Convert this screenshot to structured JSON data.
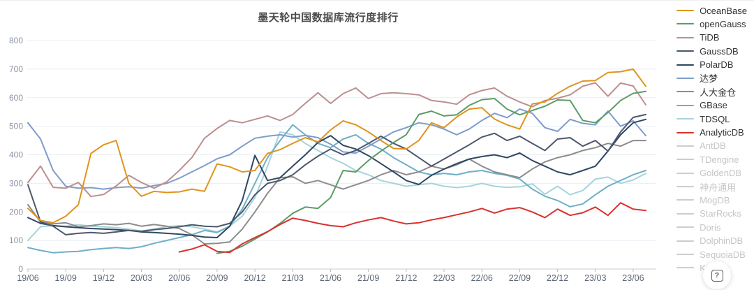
{
  "title": "墨天轮中国数据库流行度排行",
  "help_button": {
    "icon": "question-mark-in-rounded-box"
  },
  "chart_data": {
    "type": "line",
    "x": [
      "19/06",
      "19/07",
      "19/08",
      "19/09",
      "19/10",
      "19/11",
      "19/12",
      "20/01",
      "20/02",
      "20/03",
      "20/04",
      "20/05",
      "20/06",
      "20/07",
      "20/08",
      "20/09",
      "20/10",
      "20/11",
      "20/12",
      "21/01",
      "21/02",
      "21/03",
      "21/04",
      "21/05",
      "21/06",
      "21/07",
      "21/08",
      "21/09",
      "21/10",
      "21/11",
      "21/12",
      "22/01",
      "22/02",
      "22/03",
      "22/04",
      "22/05",
      "22/06",
      "22/07",
      "22/08",
      "22/09",
      "22/10",
      "22/11",
      "22/12",
      "23/01",
      "23/02",
      "23/03",
      "23/04",
      "23/05",
      "23/06",
      "23/07"
    ],
    "x_tick_labels": [
      "19/06",
      "19/09",
      "19/12",
      "20/03",
      "20/06",
      "20/09",
      "20/12",
      "21/03",
      "21/06",
      "21/09",
      "21/12",
      "22/03",
      "22/06",
      "22/09",
      "22/12",
      "23/03",
      "23/06"
    ],
    "x_label_every": 3,
    "ylim": [
      0,
      800
    ],
    "yticks": [
      0,
      100,
      200,
      300,
      400,
      500,
      600,
      700,
      800
    ],
    "grid": true,
    "legend_position": "right",
    "grid_color": "#e7edf4",
    "axis_line_color": "#c9cfd6",
    "y_label_color": "#8a93a3",
    "x_label_color": "#5d6775",
    "series": [
      {
        "name": "OceanBase",
        "color": "#e0941e",
        "active": true,
        "values": [
          212,
          170,
          162,
          185,
          225,
          405,
          435,
          450,
          300,
          255,
          272,
          268,
          270,
          280,
          272,
          368,
          358,
          340,
          345,
          405,
          418,
          440,
          460,
          445,
          487,
          519,
          505,
          480,
          450,
          422,
          420,
          450,
          512,
          495,
          532,
          560,
          565,
          525,
          505,
          490,
          578,
          585,
          615,
          640,
          658,
          660,
          688,
          691,
          700,
          640
        ]
      },
      {
        "name": "openGauss",
        "color": "#5c9c68",
        "active": true,
        "values": [
          null,
          null,
          null,
          null,
          null,
          null,
          null,
          null,
          null,
          null,
          null,
          null,
          null,
          null,
          null,
          55,
          62,
          80,
          105,
          130,
          160,
          195,
          217,
          212,
          250,
          345,
          340,
          380,
          413,
          443,
          470,
          541,
          553,
          536,
          540,
          573,
          593,
          597,
          560,
          540,
          555,
          570,
          592,
          590,
          520,
          512,
          548,
          590,
          615,
          622
        ]
      },
      {
        "name": "TiDB",
        "color": "#bc8f8f",
        "active": true,
        "values": [
          303,
          360,
          286,
          283,
          303,
          254,
          261,
          291,
          328,
          303,
          283,
          305,
          345,
          390,
          458,
          492,
          520,
          512,
          524,
          536,
          520,
          541,
          580,
          617,
          580,
          614,
          634,
          597,
          614,
          617,
          614,
          610,
          590,
          585,
          577,
          610,
          625,
          634,
          605,
          585,
          568,
          590,
          598,
          610,
          640,
          652,
          605,
          651,
          641,
          575
        ]
      },
      {
        "name": "GaussDB",
        "color": "#4c586b",
        "active": true,
        "values": [
          295,
          165,
          150,
          120,
          125,
          128,
          125,
          130,
          135,
          132,
          138,
          142,
          148,
          155,
          150,
          148,
          160,
          200,
          260,
          300,
          310,
          330,
          365,
          395,
          420,
          400,
          415,
          440,
          465,
          440,
          420,
          390,
          360,
          385,
          410,
          435,
          462,
          475,
          450,
          465,
          440,
          415,
          455,
          460,
          430,
          450,
          413,
          480,
          531,
          541
        ]
      },
      {
        "name": "PolarDB",
        "color": "#2f4763",
        "active": true,
        "values": [
          180,
          160,
          152,
          148,
          145,
          142,
          140,
          138,
          135,
          130,
          128,
          125,
          122,
          118,
          112,
          110,
          150,
          240,
          398,
          310,
          320,
          360,
          400,
          443,
          467,
          433,
          420,
          397,
          369,
          340,
          310,
          296,
          328,
          350,
          369,
          385,
          394,
          400,
          390,
          406,
          380,
          360,
          340,
          330,
          345,
          360,
          413,
          470,
          512,
          524
        ]
      },
      {
        "name": "达梦",
        "color": "#7e9ccb",
        "active": true,
        "values": [
          512,
          455,
          345,
          290,
          283,
          285,
          280,
          285,
          288,
          283,
          292,
          300,
          318,
          340,
          362,
          386,
          400,
          430,
          458,
          465,
          470,
          462,
          468,
          460,
          437,
          410,
          406,
          430,
          455,
          480,
          495,
          512,
          505,
          490,
          470,
          490,
          520,
          545,
          530,
          560,
          545,
          495,
          482,
          524,
          510,
          505,
          553,
          500,
          519,
          467
        ]
      },
      {
        "name": "人大金仓",
        "color": "#8c8c8c",
        "active": true,
        "values": [
          225,
          165,
          158,
          162,
          148,
          152,
          158,
          155,
          160,
          150,
          156,
          150,
          142,
          120,
          88,
          90,
          95,
          140,
          200,
          265,
          320,
          323,
          300,
          310,
          295,
          280,
          295,
          310,
          330,
          345,
          330,
          340,
          360,
          350,
          365,
          385,
          360,
          340,
          330,
          320,
          350,
          375,
          390,
          400,
          415,
          425,
          440,
          430,
          450,
          450
        ]
      },
      {
        "name": "GBase",
        "color": "#6fafc7",
        "active": true,
        "values": [
          75,
          65,
          57,
          60,
          62,
          68,
          72,
          75,
          72,
          78,
          90,
          100,
          110,
          120,
          135,
          128,
          150,
          210,
          300,
          390,
          450,
          505,
          470,
          440,
          425,
          455,
          470,
          440,
          420,
          390,
          365,
          340,
          330,
          335,
          330,
          340,
          345,
          335,
          328,
          315,
          280,
          255,
          240,
          218,
          228,
          260,
          290,
          310,
          330,
          345
        ]
      },
      {
        "name": "TDSQL",
        "color": "#a6d4dc",
        "active": true,
        "values": [
          100,
          148,
          152,
          150,
          155,
          150,
          148,
          145,
          140,
          133,
          140,
          148,
          152,
          148,
          140,
          130,
          150,
          185,
          250,
          360,
          480,
          470,
          440,
          415,
          390,
          370,
          345,
          330,
          310,
          300,
          290,
          295,
          300,
          290,
          285,
          290,
          300,
          290,
          286,
          288,
          298,
          262,
          290,
          260,
          275,
          315,
          322,
          300,
          312,
          335
        ]
      },
      {
        "name": "AnalyticDB",
        "color": "#d9322e",
        "active": true,
        "values": [
          null,
          null,
          null,
          null,
          null,
          null,
          null,
          null,
          null,
          null,
          null,
          null,
          60,
          70,
          85,
          62,
          58,
          88,
          110,
          131,
          156,
          178,
          170,
          160,
          152,
          148,
          162,
          172,
          180,
          168,
          158,
          162,
          172,
          180,
          190,
          200,
          212,
          196,
          210,
          215,
          200,
          180,
          210,
          188,
          197,
          217,
          188,
          232,
          210,
          205
        ]
      }
    ],
    "legend_inactive": [
      "AntDB",
      "TDengine",
      "GoldenDB",
      "神舟通用",
      "MogDB",
      "StarRocks",
      "Doris",
      "DolphinDB",
      "SequoiaDB",
      "Kylig"
    ]
  }
}
